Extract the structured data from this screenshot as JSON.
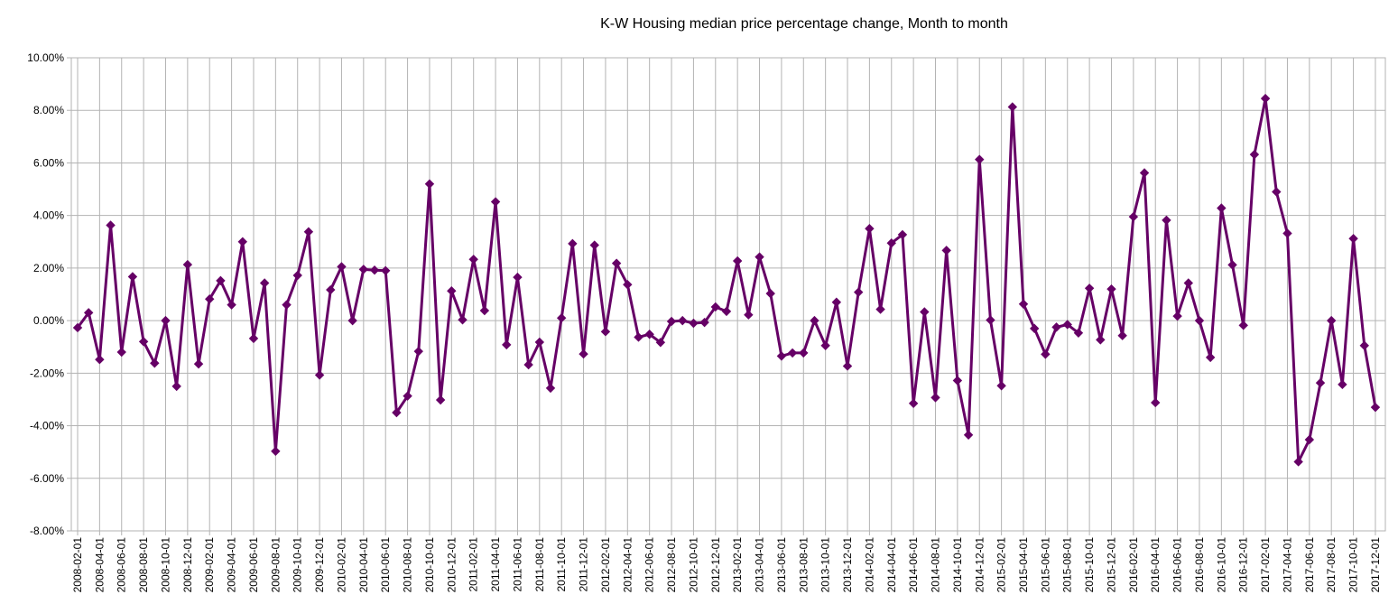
{
  "chart_data": {
    "type": "line",
    "title": "K-W Housing median price percentage change, Month to month",
    "xlabel": "",
    "ylabel": "",
    "ylim": [
      -8,
      10
    ],
    "y_tick_step": 2,
    "y_tick_format": "percent-2dp",
    "grid": true,
    "legend": "none",
    "colors": {
      "series": "#660066",
      "grid": "#b3b3b3",
      "axis": "#b3b3b3"
    },
    "x_tick_labels": [
      "2008-02-01",
      "2008-04-01",
      "2008-06-01",
      "2008-08-01",
      "2008-10-01",
      "2008-12-01",
      "2009-02-01",
      "2009-04-01",
      "2009-06-01",
      "2009-08-01",
      "2009-10-01",
      "2009-12-01",
      "2010-02-01",
      "2010-04-01",
      "2010-06-01",
      "2010-08-01",
      "2010-10-01",
      "2010-12-01",
      "2011-02-01",
      "2011-04-01",
      "2011-06-01",
      "2011-08-01",
      "2011-10-01",
      "2011-12-01",
      "2012-02-01",
      "2012-04-01",
      "2012-06-01",
      "2012-08-01",
      "2012-10-01",
      "2012-12-01",
      "2013-02-01",
      "2013-04-01",
      "2013-06-01",
      "2013-08-01",
      "2013-10-01",
      "2013-12-01",
      "2014-02-01",
      "2014-04-01",
      "2014-06-01",
      "2014-08-01",
      "2014-10-01",
      "2014-12-01",
      "2015-02-01",
      "2015-04-01",
      "2015-06-01",
      "2015-08-01",
      "2015-10-01",
      "2015-12-01",
      "2016-02-01",
      "2016-04-01",
      "2016-06-01",
      "2016-08-01",
      "2016-10-01",
      "2016-12-01",
      "2017-02-01",
      "2017-04-01",
      "2017-06-01",
      "2017-08-01",
      "2017-10-01",
      "2017-12-01"
    ],
    "series": [
      {
        "values": [
          -0.27,
          0.3,
          -1.48,
          3.63,
          -1.2,
          1.67,
          -0.8,
          -1.62,
          0.0,
          -2.5,
          2.13,
          -1.65,
          0.82,
          1.52,
          0.6,
          3.0,
          -0.68,
          1.43,
          -4.97,
          0.6,
          1.72,
          3.38,
          -2.07,
          1.17,
          2.05,
          0.0,
          1.95,
          1.92,
          1.9,
          -3.5,
          -2.87,
          -1.17,
          5.2,
          -3.02,
          1.13,
          0.03,
          2.33,
          0.38,
          4.52,
          -0.92,
          1.65,
          -1.68,
          -0.82,
          -2.57,
          0.1,
          2.93,
          -1.27,
          2.87,
          -0.42,
          2.18,
          1.37,
          -0.63,
          -0.52,
          -0.83,
          -0.03,
          0.0,
          -0.1,
          -0.07,
          0.52,
          0.35,
          2.27,
          0.22,
          2.42,
          1.03,
          -1.35,
          -1.23,
          -1.23,
          0.0,
          -0.95,
          0.7,
          -1.73,
          1.08,
          3.5,
          0.43,
          2.95,
          3.27,
          -3.15,
          0.33,
          -2.93,
          2.67,
          -2.28,
          -4.35,
          6.13,
          0.02,
          -2.48,
          8.13,
          0.63,
          -0.3,
          -1.28,
          -0.25,
          -0.15,
          -0.47,
          1.23,
          -0.73,
          1.2,
          -0.57,
          3.95,
          5.62,
          -3.12,
          3.82,
          0.17,
          1.43,
          0.0,
          -1.4,
          4.28,
          2.12,
          -0.18,
          6.32,
          8.45,
          4.9,
          3.32,
          -5.37,
          -4.53,
          -2.37,
          0.0,
          -2.43,
          3.12,
          -0.95,
          -3.3
        ]
      }
    ]
  }
}
